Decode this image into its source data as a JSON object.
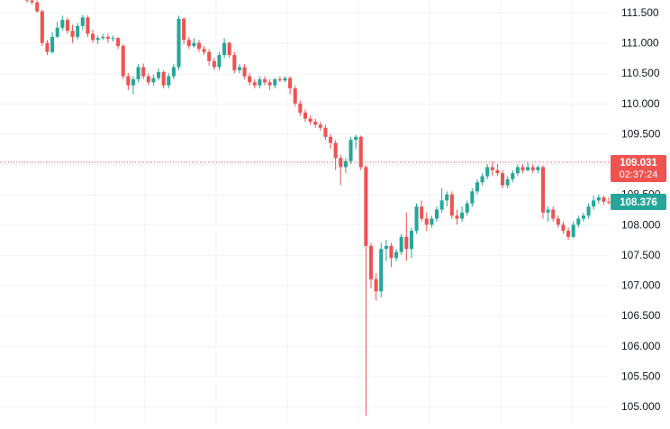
{
  "chart_data": {
    "type": "candlestick",
    "y_axis": {
      "position": "right",
      "range": [
        104.85,
        111.72
      ],
      "ticks": [
        "105.000",
        "105.500",
        "106.000",
        "106.500",
        "107.000",
        "107.500",
        "108.000",
        "108.500",
        "109.000",
        "109.500",
        "110.000",
        "110.500",
        "111.000",
        "111.500"
      ]
    },
    "grid": true,
    "colors": {
      "up": "#26a69a",
      "down": "#ef5350",
      "grid": "#f0f3fa",
      "axis_text": "#131722"
    },
    "price_line": {
      "value": 109.031,
      "label": "109.031",
      "countdown": "02:37:24",
      "color": "#ef5350"
    },
    "last_price": {
      "value": 108.376,
      "label": "108.376",
      "color": "#26a69a"
    },
    "candles": [
      [
        111.72,
        111.7,
        111.74,
        111.66
      ],
      [
        111.7,
        111.67,
        111.73,
        111.63
      ],
      [
        111.67,
        111.52,
        111.7,
        111.5
      ],
      [
        111.52,
        111.0,
        111.55,
        110.95
      ],
      [
        111.0,
        110.85,
        111.05,
        110.8
      ],
      [
        110.85,
        111.1,
        111.18,
        110.82
      ],
      [
        111.1,
        111.25,
        111.35,
        111.08
      ],
      [
        111.25,
        111.38,
        111.45,
        111.2
      ],
      [
        111.38,
        111.2,
        111.42,
        111.15
      ],
      [
        111.2,
        111.1,
        111.3,
        111.0
      ],
      [
        111.1,
        111.28,
        111.33,
        111.05
      ],
      [
        111.28,
        111.42,
        111.46,
        111.22
      ],
      [
        111.42,
        111.15,
        111.45,
        111.1
      ],
      [
        111.15,
        111.05,
        111.22,
        111.0
      ],
      [
        111.05,
        111.08,
        111.12,
        110.98
      ],
      [
        111.08,
        111.1,
        111.15,
        111.05
      ],
      [
        111.1,
        111.07,
        111.15,
        111.0
      ],
      [
        111.07,
        111.08,
        111.12,
        111.02
      ],
      [
        111.08,
        110.95,
        111.1,
        110.9
      ],
      [
        110.95,
        110.45,
        110.98,
        110.4
      ],
      [
        110.45,
        110.3,
        110.5,
        110.22
      ],
      [
        110.3,
        110.4,
        110.45,
        110.15
      ],
      [
        110.4,
        110.6,
        110.65,
        110.35
      ],
      [
        110.6,
        110.45,
        110.66,
        110.4
      ],
      [
        110.45,
        110.35,
        110.5,
        110.3
      ],
      [
        110.35,
        110.42,
        110.48,
        110.3
      ],
      [
        110.42,
        110.52,
        110.58,
        110.38
      ],
      [
        110.52,
        110.3,
        110.55,
        110.25
      ],
      [
        110.3,
        110.45,
        110.5,
        110.25
      ],
      [
        110.45,
        110.6,
        110.65,
        110.4
      ],
      [
        110.6,
        111.4,
        111.45,
        110.55
      ],
      [
        111.4,
        111.05,
        111.42,
        110.98
      ],
      [
        111.05,
        110.95,
        111.1,
        110.9
      ],
      [
        110.95,
        111.0,
        111.08,
        110.92
      ],
      [
        111.0,
        110.9,
        111.05,
        110.85
      ],
      [
        110.9,
        110.85,
        110.95,
        110.8
      ],
      [
        110.85,
        110.7,
        110.9,
        110.62
      ],
      [
        110.7,
        110.6,
        110.75,
        110.55
      ],
      [
        110.6,
        110.8,
        110.85,
        110.55
      ],
      [
        110.8,
        111.0,
        111.08,
        110.75
      ],
      [
        111.0,
        110.8,
        111.02,
        110.75
      ],
      [
        110.8,
        110.55,
        110.85,
        110.5
      ],
      [
        110.55,
        110.6,
        110.65,
        110.5
      ],
      [
        110.6,
        110.45,
        110.65,
        110.4
      ],
      [
        110.45,
        110.35,
        110.5,
        110.3
      ],
      [
        110.35,
        110.3,
        110.4,
        110.25
      ],
      [
        110.3,
        110.4,
        110.45,
        110.25
      ],
      [
        110.4,
        110.35,
        110.45,
        110.3
      ],
      [
        110.35,
        110.3,
        110.4,
        110.22
      ],
      [
        110.3,
        110.4,
        110.42,
        110.25
      ],
      [
        110.4,
        110.38,
        110.45,
        110.35
      ],
      [
        110.38,
        110.42,
        110.45,
        110.35
      ],
      [
        110.42,
        110.25,
        110.45,
        110.15
      ],
      [
        110.25,
        110.0,
        110.3,
        109.95
      ],
      [
        110.0,
        109.85,
        110.05,
        109.8
      ],
      [
        109.85,
        109.75,
        109.9,
        109.7
      ],
      [
        109.75,
        109.7,
        109.8,
        109.65
      ],
      [
        109.7,
        109.65,
        109.75,
        109.6
      ],
      [
        109.65,
        109.6,
        109.7,
        109.55
      ],
      [
        109.6,
        109.45,
        109.65,
        109.4
      ],
      [
        109.45,
        109.35,
        109.5,
        109.25
      ],
      [
        109.35,
        109.1,
        109.4,
        108.9
      ],
      [
        109.1,
        108.95,
        109.15,
        108.65
      ],
      [
        108.95,
        109.05,
        109.1,
        108.85
      ],
      [
        109.05,
        109.4,
        109.45,
        109.0
      ],
      [
        109.4,
        109.45,
        109.48,
        109.25
      ],
      [
        109.45,
        108.95,
        109.47,
        108.9
      ],
      [
        108.95,
        107.65,
        108.98,
        104.85
      ],
      [
        107.65,
        107.1,
        107.7,
        106.95
      ],
      [
        107.1,
        106.9,
        107.2,
        106.75
      ],
      [
        106.9,
        107.6,
        107.7,
        106.8
      ],
      [
        107.6,
        107.65,
        107.75,
        107.4
      ],
      [
        107.65,
        107.45,
        107.7,
        107.3
      ],
      [
        107.45,
        107.55,
        107.6,
        107.4
      ],
      [
        107.55,
        107.8,
        107.85,
        107.5
      ],
      [
        107.8,
        107.6,
        108.2,
        107.4
      ],
      [
        107.6,
        107.9,
        107.95,
        107.45
      ],
      [
        107.9,
        108.3,
        108.35,
        107.85
      ],
      [
        108.3,
        108.1,
        108.4,
        108.05
      ],
      [
        108.1,
        108.0,
        108.2,
        107.9
      ],
      [
        108.0,
        108.1,
        108.15,
        107.95
      ],
      [
        108.1,
        108.25,
        108.3,
        108.05
      ],
      [
        108.25,
        108.4,
        108.6,
        108.2
      ],
      [
        108.4,
        108.5,
        108.55,
        108.3
      ],
      [
        108.5,
        108.15,
        108.55,
        108.1
      ],
      [
        108.15,
        108.1,
        108.25,
        108.0
      ],
      [
        108.1,
        108.2,
        108.3,
        108.05
      ],
      [
        108.2,
        108.35,
        108.4,
        108.15
      ],
      [
        108.35,
        108.55,
        108.6,
        108.3
      ],
      [
        108.55,
        108.7,
        108.75,
        108.5
      ],
      [
        108.7,
        108.8,
        108.85,
        108.65
      ],
      [
        108.8,
        108.95,
        109.0,
        108.75
      ],
      [
        108.95,
        108.9,
        109.05,
        108.8
      ],
      [
        108.9,
        108.85,
        109.0,
        108.8
      ],
      [
        108.85,
        108.65,
        108.9,
        108.6
      ],
      [
        108.65,
        108.75,
        108.8,
        108.6
      ],
      [
        108.75,
        108.85,
        108.9,
        108.7
      ],
      [
        108.85,
        108.95,
        109.0,
        108.8
      ],
      [
        108.95,
        108.9,
        109.0,
        108.85
      ],
      [
        108.9,
        108.95,
        109.02,
        108.88
      ],
      [
        108.95,
        108.9,
        109.0,
        108.85
      ],
      [
        108.9,
        108.95,
        108.98,
        108.85
      ],
      [
        108.95,
        108.2,
        108.98,
        108.1
      ],
      [
        108.2,
        108.25,
        108.3,
        108.05
      ],
      [
        108.25,
        108.1,
        108.3,
        108.05
      ],
      [
        108.1,
        108.0,
        108.15,
        107.95
      ],
      [
        108.0,
        107.9,
        108.05,
        107.85
      ],
      [
        107.9,
        107.8,
        107.95,
        107.75
      ],
      [
        107.8,
        108.0,
        108.05,
        107.78
      ],
      [
        108.0,
        108.1,
        108.15,
        107.95
      ],
      [
        108.1,
        108.15,
        108.2,
        108.05
      ],
      [
        108.15,
        108.3,
        108.35,
        108.1
      ],
      [
        108.3,
        108.4,
        108.48,
        108.25
      ],
      [
        108.4,
        108.45,
        108.5,
        108.35
      ],
      [
        108.45,
        108.38,
        108.48,
        108.33
      ],
      [
        108.38,
        108.376,
        108.45,
        108.33
      ]
    ]
  }
}
